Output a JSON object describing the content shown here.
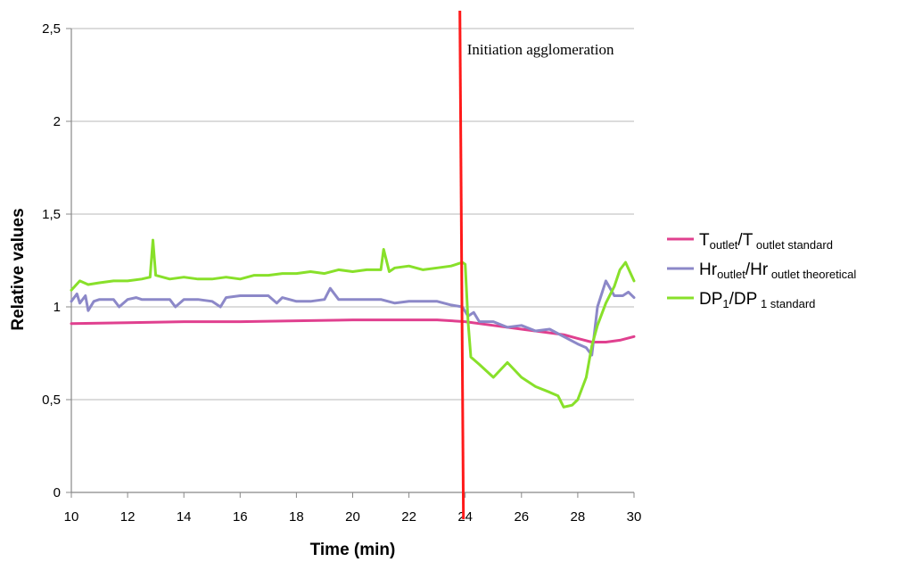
{
  "chart_data": {
    "type": "line",
    "title": "",
    "xlabel": "Time (min)",
    "ylabel": "Relative values",
    "xlim": [
      10,
      30
    ],
    "ylim": [
      0,
      2.5
    ],
    "x_ticks": [
      "10",
      "12",
      "14",
      "16",
      "18",
      "20",
      "22",
      "24",
      "26",
      "28",
      "30"
    ],
    "y_ticks": [
      "0",
      "0,5",
      "1",
      "1,5",
      "2",
      "2,5"
    ],
    "grid": "horizontal",
    "legend_position": "right",
    "annotation": {
      "text": "Initiation agglomeration",
      "x": 24,
      "line_color": "#ff1a1a"
    },
    "series": [
      {
        "name": "T",
        "name_sub": "outlet",
        "name_sep": "/T",
        "name_sub2": "outlet standard",
        "color": "#e0408f",
        "x": [
          10,
          12,
          14,
          16,
          18,
          20,
          22,
          23,
          24,
          25,
          26,
          27,
          27.5,
          28,
          28.5,
          29,
          29.5,
          30
        ],
        "values": [
          0.91,
          0.915,
          0.92,
          0.92,
          0.925,
          0.93,
          0.93,
          0.93,
          0.92,
          0.9,
          0.88,
          0.86,
          0.85,
          0.83,
          0.81,
          0.81,
          0.82,
          0.84
        ]
      },
      {
        "name": "Hr",
        "name_sub": "outlet",
        "name_sep": "/Hr",
        "name_sub2": "outlet theoretical",
        "color": "#8c88c8",
        "x": [
          10,
          10.2,
          10.3,
          10.5,
          10.6,
          10.8,
          11,
          11.5,
          11.7,
          12,
          12.3,
          12.5,
          13,
          13.5,
          13.7,
          14,
          14.5,
          15,
          15.3,
          15.5,
          16,
          16.5,
          17,
          17.3,
          17.5,
          18,
          18.5,
          19,
          19.2,
          19.5,
          20,
          20.5,
          21,
          21.5,
          22,
          22.5,
          23,
          23.5,
          23.9,
          24.1,
          24.3,
          24.5,
          25,
          25.5,
          26,
          26.5,
          27,
          27.5,
          28,
          28.3,
          28.5,
          28.7,
          29,
          29.3,
          29.6,
          29.8,
          30
        ],
        "values": [
          1.03,
          1.07,
          1.02,
          1.06,
          0.98,
          1.03,
          1.04,
          1.04,
          1.0,
          1.04,
          1.05,
          1.04,
          1.04,
          1.04,
          1.0,
          1.04,
          1.04,
          1.03,
          1.0,
          1.05,
          1.06,
          1.06,
          1.06,
          1.02,
          1.05,
          1.03,
          1.03,
          1.04,
          1.1,
          1.04,
          1.04,
          1.04,
          1.04,
          1.02,
          1.03,
          1.03,
          1.03,
          1.01,
          1.0,
          0.95,
          0.97,
          0.92,
          0.92,
          0.89,
          0.9,
          0.87,
          0.88,
          0.84,
          0.8,
          0.78,
          0.74,
          1.0,
          1.14,
          1.06,
          1.06,
          1.08,
          1.05
        ]
      },
      {
        "name": "DP",
        "name_sub": "1",
        "name_sep": "/DP",
        "name_sub2": "1 standard",
        "color": "#88e02a",
        "x": [
          10,
          10.3,
          10.6,
          11,
          11.5,
          12,
          12.5,
          12.8,
          12.9,
          13,
          13.5,
          14,
          14.5,
          15,
          15.5,
          16,
          16.5,
          17,
          17.5,
          18,
          18.5,
          19,
          19.5,
          20,
          20.5,
          21,
          21.1,
          21.3,
          21.5,
          22,
          22.5,
          23,
          23.5,
          23.9,
          24,
          24.1,
          24.2,
          24.5,
          25,
          25.5,
          26,
          26.5,
          27,
          27.3,
          27.5,
          27.8,
          28,
          28.3,
          28.5,
          28.7,
          29,
          29.3,
          29.5,
          29.7,
          30
        ],
        "values": [
          1.09,
          1.14,
          1.12,
          1.13,
          1.14,
          1.14,
          1.15,
          1.16,
          1.36,
          1.17,
          1.15,
          1.16,
          1.15,
          1.15,
          1.16,
          1.15,
          1.17,
          1.17,
          1.18,
          1.18,
          1.19,
          1.18,
          1.2,
          1.19,
          1.2,
          1.2,
          1.31,
          1.19,
          1.21,
          1.22,
          1.2,
          1.21,
          1.22,
          1.24,
          1.23,
          0.92,
          0.73,
          0.69,
          0.62,
          0.7,
          0.62,
          0.57,
          0.54,
          0.52,
          0.46,
          0.47,
          0.5,
          0.62,
          0.79,
          0.9,
          1.02,
          1.11,
          1.2,
          1.24,
          1.14
        ]
      }
    ]
  }
}
